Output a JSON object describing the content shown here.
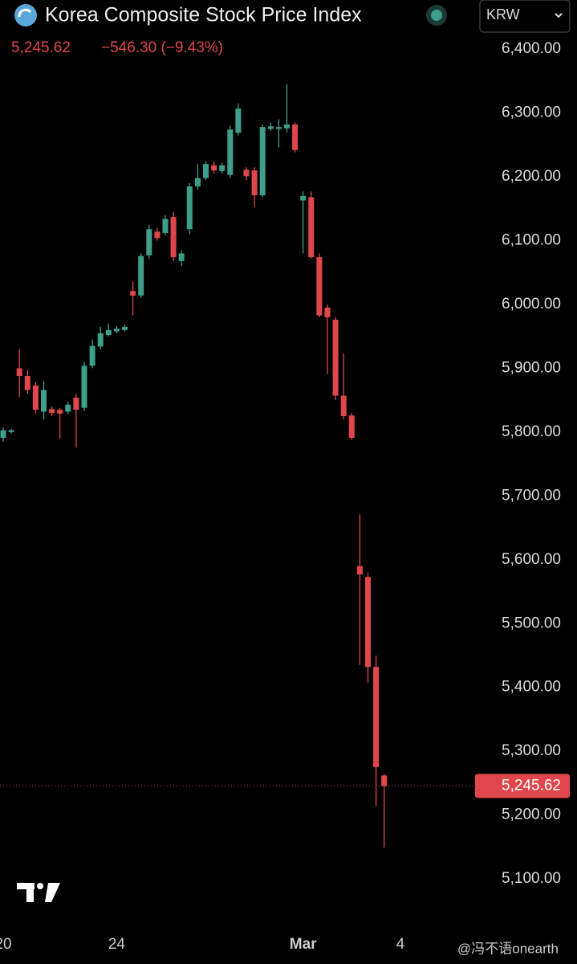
{
  "chart_data": {
    "type": "candlestick",
    "title": "Korea Composite Stock Price Index",
    "currency": "KRW",
    "last_value": 5245.62,
    "last_value_label": "5,245.62",
    "change": "−546.30 (−9.43%)",
    "watermark": "@冯不语onearth",
    "up_color": "#3e9e8a",
    "down_color": "#e0474c",
    "categories": [
      "20",
      null,
      null,
      null,
      null,
      null,
      null,
      null,
      null,
      null,
      null,
      null,
      null,
      null,
      "24",
      null,
      null,
      null,
      null,
      null,
      null,
      null,
      null,
      null,
      null,
      null,
      null,
      null,
      null,
      null,
      null,
      null,
      null,
      null,
      null,
      null,
      null,
      "Mar",
      null,
      null,
      null,
      null,
      null,
      null,
      null,
      null,
      null,
      null,
      null,
      "4"
    ],
    "open": [
      5791,
      5800,
      5900,
      5888,
      5873,
      5832,
      5836,
      5835,
      5832,
      5854,
      5838,
      5904,
      5934,
      5952,
      5958,
      5960,
      6021,
      6014,
      6077,
      6114,
      6112,
      6137,
      6068,
      6118,
      6185,
      6198,
      6218,
      6209,
      6203,
      6269,
      6211,
      6210,
      6171,
      6275,
      6275,
      6276,
      6282,
      6163,
      6168,
      6074,
      5995,
      5976,
      5857,
      5826,
      5590,
      5573,
      5432,
      5262,
      null,
      null
    ],
    "high": [
      5807,
      5805,
      5930,
      5897,
      5878,
      5880,
      5840,
      5838,
      5848,
      5860,
      5910,
      5945,
      5965,
      5970,
      5966,
      5968,
      6036,
      6080,
      6125,
      6120,
      6140,
      6145,
      6085,
      6190,
      6220,
      6225,
      6225,
      6222,
      6280,
      6315,
      6215,
      6215,
      6282,
      6285,
      6290,
      6345,
      6285,
      6177,
      6177,
      6080,
      6000,
      5980,
      5923,
      5830,
      5671,
      5580,
      5450,
      5265,
      null,
      null
    ],
    "low": [
      5785,
      5798,
      5855,
      5860,
      5829,
      5820,
      5825,
      5790,
      5828,
      5776,
      5833,
      5900,
      5930,
      5950,
      5955,
      5958,
      5983,
      6010,
      6072,
      6100,
      6108,
      6068,
      6060,
      6110,
      6180,
      6195,
      6205,
      6205,
      6198,
      6265,
      6195,
      6153,
      6168,
      6272,
      6246,
      6270,
      6238,
      6080,
      6072,
      5980,
      5891,
      5850,
      5820,
      5788,
      5435,
      5407,
      5214,
      5149,
      null,
      null
    ],
    "close": [
      5803,
      5803,
      5888,
      5866,
      5835,
      5866,
      5830,
      5829,
      5843,
      5835,
      5904,
      5935,
      5955,
      5960,
      5962,
      5965,
      6014,
      6076,
      6118,
      6104,
      6134,
      6074,
      6080,
      6185,
      6198,
      6220,
      6210,
      6218,
      6274,
      6307,
      6201,
      6171,
      6278,
      6279,
      6278,
      6282,
      6242,
      6170,
      6074,
      5983,
      5980,
      5857,
      5825,
      5791,
      5577,
      5432,
      5275,
      5245.62,
      null,
      null
    ],
    "ylim": [
      5017,
      6477
    ],
    "yticks": [
      {
        "value": 5100,
        "label": "5,100.00"
      },
      {
        "value": 5200,
        "label": "5,200.00"
      },
      {
        "value": 5300,
        "label": "5,300.00"
      },
      {
        "value": 5400,
        "label": "5,400.00"
      },
      {
        "value": 5500,
        "label": "5,500.00"
      },
      {
        "value": 5600,
        "label": "5,600.00"
      },
      {
        "value": 5700,
        "label": "5,700.00"
      },
      {
        "value": 5800,
        "label": "5,800.00"
      },
      {
        "value": 5900,
        "label": "5,900.00"
      },
      {
        "value": 6000,
        "label": "6,000.00"
      },
      {
        "value": 6100,
        "label": "6,100.00"
      },
      {
        "value": 6200,
        "label": "6,200.00"
      },
      {
        "value": 6300,
        "label": "6,300.00"
      },
      {
        "value": 6400,
        "label": "6,400.00"
      }
    ]
  }
}
